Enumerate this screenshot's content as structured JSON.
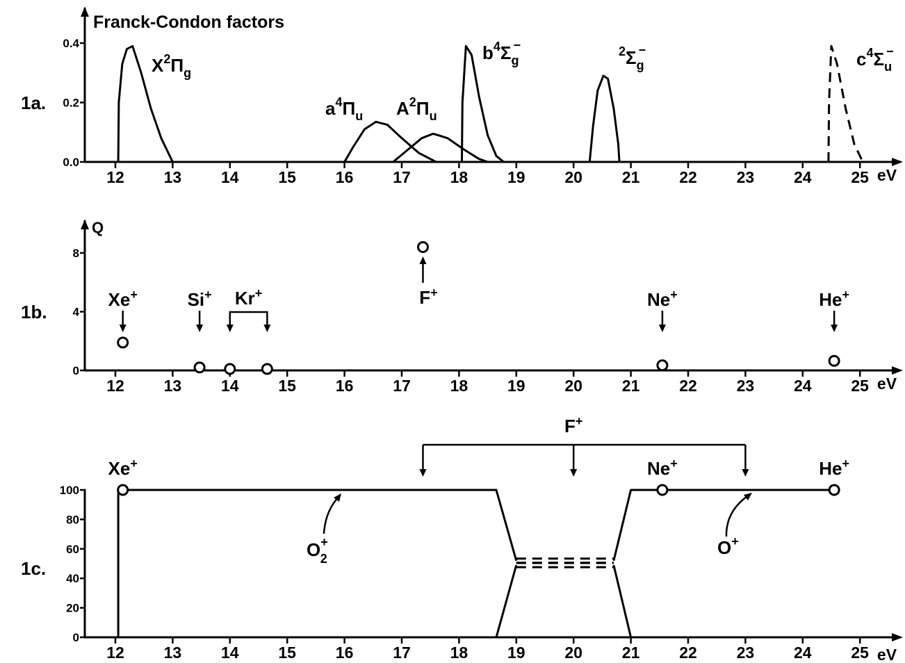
{
  "chart_data": [
    {
      "panel_label": "1a.",
      "type": "line",
      "title": "Franck-Condon factors",
      "x_unit": "eV",
      "xlim": [
        11.5,
        25.4
      ],
      "ylim": [
        0,
        0.45
      ],
      "x_ticks": [
        "12",
        "13",
        "14",
        "15",
        "16",
        "17",
        "18",
        "19",
        "20",
        "21",
        "22",
        "23",
        "24",
        "25"
      ],
      "y_ticks": [
        "0.0",
        "0.2",
        "0.4"
      ],
      "series": [
        {
          "name": "X²Πg",
          "label_main": "X",
          "label_sup": "2",
          "label_sym": "Π",
          "label_sub": "g",
          "style": "solid",
          "x": [
            12.05,
            12.06,
            12.12,
            12.2,
            12.3,
            12.45,
            12.62,
            12.8,
            13.0
          ],
          "y": [
            0.0,
            0.2,
            0.33,
            0.38,
            0.39,
            0.3,
            0.18,
            0.08,
            0.0
          ]
        },
        {
          "name": "a⁴Πu",
          "label_main": "a",
          "label_sup": "4",
          "label_sym": "Π",
          "label_sub": "u",
          "style": "solid",
          "x": [
            16.0,
            16.15,
            16.35,
            16.55,
            16.75,
            17.0,
            17.3,
            17.6
          ],
          "y": [
            0.0,
            0.05,
            0.11,
            0.135,
            0.125,
            0.08,
            0.03,
            0.0
          ]
        },
        {
          "name": "A²Πu",
          "label_main": "A",
          "label_sup": "2",
          "label_sym": "Π",
          "label_sub": "u",
          "style": "solid",
          "x": [
            16.85,
            17.1,
            17.35,
            17.55,
            17.8,
            18.1,
            18.35,
            18.5
          ],
          "y": [
            0.0,
            0.04,
            0.08,
            0.095,
            0.08,
            0.04,
            0.01,
            0.0
          ]
        },
        {
          "name": "b⁴Σg⁻",
          "label_main": "b",
          "label_sup": "4",
          "label_sym": "Σ",
          "label_sub": "g",
          "label_charge": "−",
          "style": "solid",
          "x": [
            18.05,
            18.06,
            18.12,
            18.22,
            18.35,
            18.5,
            18.65,
            18.78
          ],
          "y": [
            0.0,
            0.2,
            0.39,
            0.36,
            0.22,
            0.09,
            0.02,
            0.0
          ]
        },
        {
          "name": "²Σg⁻",
          "label_main": "",
          "label_sup": "2",
          "label_sym": "Σ",
          "label_sub": "g",
          "label_charge": "−",
          "style": "solid",
          "x": [
            20.28,
            20.34,
            20.42,
            20.52,
            20.6,
            20.7,
            20.78,
            20.8
          ],
          "y": [
            0.0,
            0.12,
            0.24,
            0.29,
            0.28,
            0.18,
            0.06,
            0.0
          ]
        },
        {
          "name": "c⁴Σu⁻",
          "label_main": "c",
          "label_sup": "4",
          "label_sym": "Σ",
          "label_sub": "u",
          "label_charge": "−",
          "style": "dashed",
          "x": [
            24.45,
            24.46,
            24.5,
            24.6,
            24.75,
            24.9,
            25.05
          ],
          "y": [
            0.0,
            0.2,
            0.39,
            0.33,
            0.18,
            0.06,
            0.0
          ]
        }
      ]
    },
    {
      "panel_label": "1b.",
      "type": "scatter",
      "ylabel": "Q",
      "x_unit": "eV",
      "xlim": [
        11.5,
        25.4
      ],
      "ylim": [
        0,
        9.5
      ],
      "x_ticks": [
        "12",
        "13",
        "14",
        "15",
        "16",
        "17",
        "18",
        "19",
        "20",
        "21",
        "22",
        "23",
        "24",
        "25"
      ],
      "y_ticks": [
        "0",
        "4",
        "8"
      ],
      "points": [
        {
          "x": 12.13,
          "y": 1.9
        },
        {
          "x": 13.47,
          "y": 0.2
        },
        {
          "x": 14.0,
          "y": 0.1
        },
        {
          "x": 14.65,
          "y": 0.1
        },
        {
          "x": 17.37,
          "y": 8.4
        },
        {
          "x": 21.55,
          "y": 0.35
        },
        {
          "x": 24.55,
          "y": 0.65
        }
      ],
      "annotations": [
        {
          "text": "Xe",
          "charge": "+",
          "x": 12.13,
          "arrow": "down"
        },
        {
          "text": "Si",
          "charge": "+",
          "x": 13.47,
          "arrow": "down"
        },
        {
          "text": "Kr",
          "charge": "+",
          "x": [
            14.0,
            14.65
          ],
          "arrow": "bracket-down"
        },
        {
          "text": "F",
          "charge": "+",
          "x": 17.37,
          "arrow": "up"
        },
        {
          "text": "Ne",
          "charge": "+",
          "x": 21.55,
          "arrow": "down"
        },
        {
          "text": "He",
          "charge": "+",
          "x": 24.55,
          "arrow": "down"
        }
      ]
    },
    {
      "panel_label": "1c.",
      "type": "line",
      "x_unit": "eV",
      "xlim": [
        11.5,
        25.4
      ],
      "ylim": [
        0,
        105
      ],
      "x_ticks": [
        "12",
        "13",
        "14",
        "15",
        "16",
        "17",
        "18",
        "19",
        "20",
        "21",
        "22",
        "23",
        "24",
        "25"
      ],
      "y_ticks": [
        "0",
        "20",
        "40",
        "60",
        "80",
        "100"
      ],
      "series": [
        {
          "name": "O₂⁺",
          "label_main": "O",
          "label_sub": "2",
          "label_charge": "+",
          "style": "solid",
          "x": [
            12.05,
            12.05,
            18.65,
            19.0
          ],
          "y": [
            0,
            100,
            100,
            52
          ]
        },
        {
          "name": "O₂⁺",
          "style": "solid",
          "x": [
            20.7,
            21.0,
            24.55
          ],
          "y": [
            52,
            100,
            100
          ]
        },
        {
          "name": "O₂⁺",
          "style": "dashed",
          "x": [
            19.0,
            20.7
          ],
          "y": [
            52,
            52
          ]
        },
        {
          "name": "O⁺",
          "label_main": "O",
          "label_charge": "+",
          "style": "solid",
          "x": [
            18.65,
            19.0
          ],
          "y": [
            0,
            49
          ]
        },
        {
          "name": "O⁺",
          "style": "solid",
          "x": [
            20.7,
            21.0
          ],
          "y": [
            49,
            0
          ]
        },
        {
          "name": "O⁺",
          "style": "dashed",
          "x": [
            19.0,
            20.7
          ],
          "y": [
            49,
            49
          ]
        }
      ],
      "points": [
        {
          "x": 12.13,
          "y": 100
        },
        {
          "x": 21.55,
          "y": 100
        },
        {
          "x": 24.55,
          "y": 100
        }
      ],
      "annotations": [
        {
          "text": "Xe",
          "charge": "+",
          "x": 12.13
        },
        {
          "text": "Ne",
          "charge": "+",
          "x": 21.55
        },
        {
          "text": "He",
          "charge": "+",
          "x": 24.55
        },
        {
          "text": "F",
          "charge": "+",
          "x": [
            17.37,
            20.0,
            23.0
          ],
          "arrow": "bracket-down"
        }
      ]
    }
  ]
}
